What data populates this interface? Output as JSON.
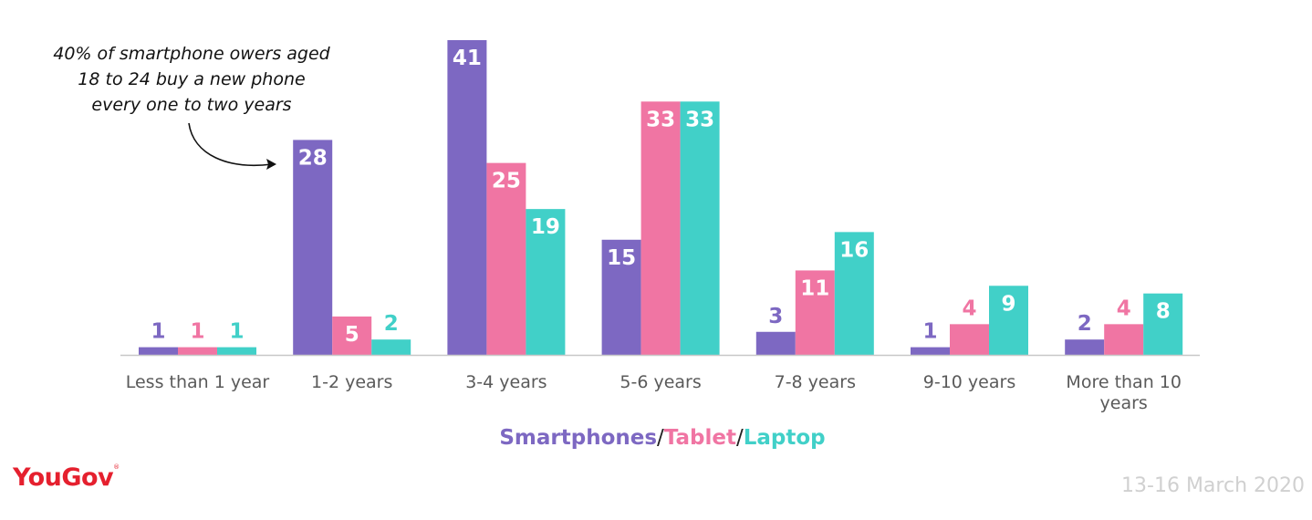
{
  "annotation": {
    "lines": [
      "40% of smartphone owers aged",
      "18 to 24 buy a new phone",
      "every one to two years"
    ]
  },
  "legend": {
    "smartphones": "Smartphones",
    "separator": "/",
    "tablet": "Tablet",
    "laptop": "Laptop"
  },
  "brand": {
    "logo": "YouGov",
    "mark": "®"
  },
  "date": "13-16 March 2020",
  "colors": {
    "smartphones": "#7d68c2",
    "tablet": "#f075a3",
    "laptop": "#41d0c8",
    "axis": "#c8c8c8",
    "category_text": "#5a5a5a"
  },
  "chart_data": {
    "type": "bar",
    "categories": [
      "Less than 1 year",
      "1-2 years",
      "3-4 years",
      "5-6 years",
      "7-8 years",
      "9-10 years",
      "More than 10 years"
    ],
    "category_lines": [
      [
        "Less than 1 year"
      ],
      [
        "1-2 years"
      ],
      [
        "3-4 years"
      ],
      [
        "5-6 years"
      ],
      [
        "7-8 years"
      ],
      [
        "9-10 years"
      ],
      [
        "More than 10",
        "years"
      ]
    ],
    "series": [
      {
        "name": "Smartphones",
        "values": [
          1,
          28,
          41,
          15,
          3,
          1,
          2
        ]
      },
      {
        "name": "Tablet",
        "values": [
          1,
          5,
          25,
          33,
          11,
          4,
          4
        ]
      },
      {
        "name": "Laptop",
        "values": [
          1,
          2,
          19,
          33,
          16,
          9,
          8
        ]
      }
    ],
    "ylim": [
      0,
      41
    ],
    "grid": false,
    "legend_position": "bottom"
  }
}
